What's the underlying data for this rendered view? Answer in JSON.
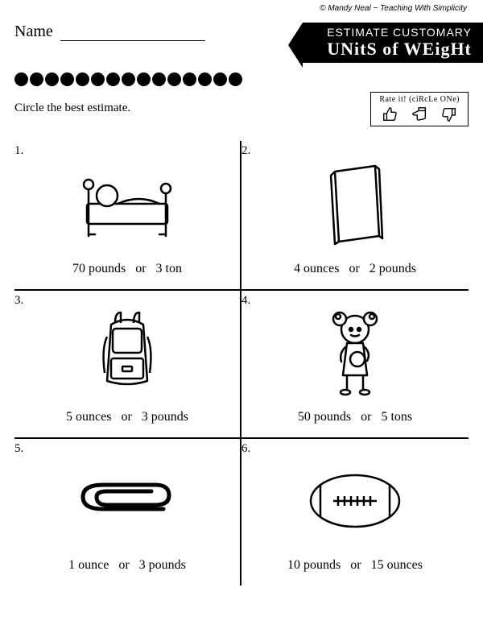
{
  "credit": "© Mandy Neal ~ Teaching With Simplicity",
  "name_label": "Name",
  "title_line1": "ESTIMATE CUSTOMARY",
  "title_line2": "UNitS of WEigHt",
  "instructions": "Circle the best estimate.",
  "rate_label": "Rate it! (ciRcLe ONe)",
  "dot_count": 15,
  "cells": [
    {
      "num": "1.",
      "option_a": "70 pounds",
      "or": "or",
      "option_b": "3 ton",
      "icon": "bed"
    },
    {
      "num": "2.",
      "option_a": "4 ounces",
      "or": "or",
      "option_b": "2 pounds",
      "icon": "book"
    },
    {
      "num": "3.",
      "option_a": "5 ounces",
      "or": "or",
      "option_b": "3 pounds",
      "icon": "backpack"
    },
    {
      "num": "4.",
      "option_a": "50 pounds",
      "or": "or",
      "option_b": "5 tons",
      "icon": "girl"
    },
    {
      "num": "5.",
      "option_a": "1 ounce",
      "or": "or",
      "option_b": "3 pounds",
      "icon": "paperclip"
    },
    {
      "num": "6.",
      "option_a": "10 pounds",
      "or": "or",
      "option_b": "15 ounces",
      "icon": "football"
    }
  ],
  "style": {
    "bg": "#ffffff",
    "fg": "#000000",
    "stroke_width": 2.5
  }
}
